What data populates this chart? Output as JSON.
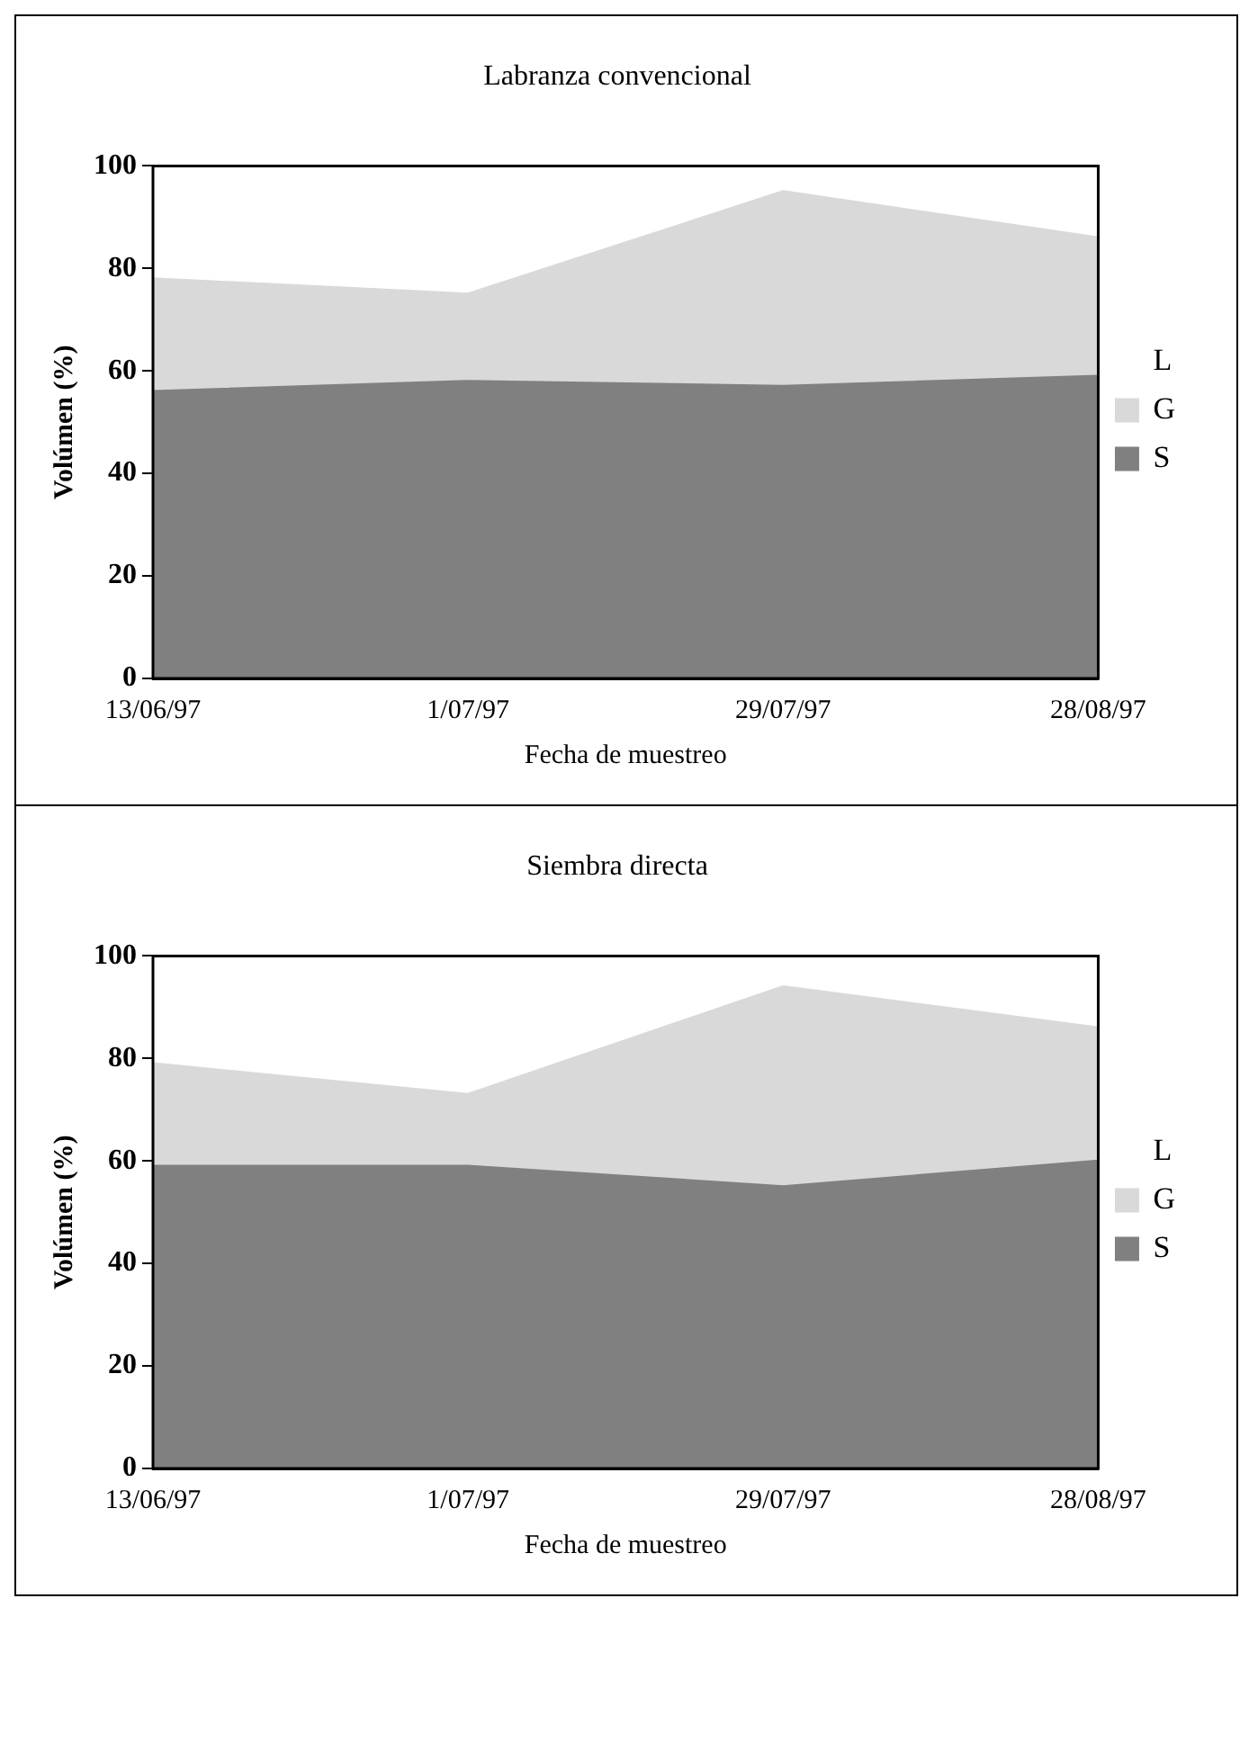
{
  "chart_data": [
    {
      "type": "area",
      "title": "Labranza convencional",
      "xlabel": "Fecha de muestreo",
      "ylabel": "Volúmen (%)",
      "categories": [
        "13/06/97",
        "1/07/97",
        "29/07/97",
        "28/08/97"
      ],
      "stacked": true,
      "ylim": [
        0,
        100
      ],
      "yticks": [
        0,
        20,
        40,
        60,
        80,
        100
      ],
      "grid": false,
      "legend": "right",
      "series": [
        {
          "name": "S",
          "color": "#808080",
          "values": [
            56,
            58,
            57,
            59
          ]
        },
        {
          "name": "G",
          "color": "#d9d9d9",
          "values": [
            22,
            17,
            38,
            27
          ]
        },
        {
          "name": "L",
          "color": "#ffffff",
          "values": [
            22,
            25,
            5,
            14
          ]
        }
      ]
    },
    {
      "type": "area",
      "title": "Siembra directa",
      "xlabel": "Fecha de muestreo",
      "ylabel": "Volúmen (%)",
      "categories": [
        "13/06/97",
        "1/07/97",
        "29/07/97",
        "28/08/97"
      ],
      "stacked": true,
      "ylim": [
        0,
        100
      ],
      "yticks": [
        0,
        20,
        40,
        60,
        80,
        100
      ],
      "grid": false,
      "legend": "right",
      "series": [
        {
          "name": "S",
          "color": "#808080",
          "values": [
            59,
            59,
            55,
            60
          ]
        },
        {
          "name": "G",
          "color": "#d9d9d9",
          "values": [
            20,
            14,
            39,
            26
          ]
        },
        {
          "name": "L",
          "color": "#ffffff",
          "values": [
            21,
            27,
            6,
            14
          ]
        }
      ]
    }
  ]
}
